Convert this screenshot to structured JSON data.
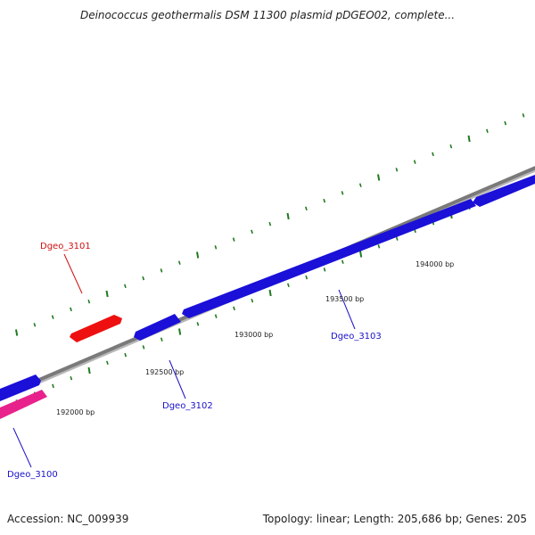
{
  "title": "Deinococcus geothermalis DSM 11300 plasmid pDGEO02, complete...",
  "footer": {
    "accession": "Accession: NC_009939",
    "summary": "Topology: linear; Length: 205,686 bp; Genes: 205"
  },
  "colors": {
    "backbone": "#7a7a7a",
    "gene_forward": "#1a10d8",
    "gene_reverse_red": "#ee1010",
    "gene_reverse_pink": "#e8228c",
    "tick": "#1e7a1e",
    "label_blue": "#1a10c8",
    "label_red": "#d01010"
  },
  "scale_labels": [
    "192000 bp",
    "192500 bp",
    "193000 bp",
    "193500 bp",
    "194000 bp"
  ],
  "genes": [
    {
      "name": "Dgeo_3100",
      "strand": "reverse",
      "color": "pink"
    },
    {
      "name": "Dgeo_3101",
      "strand": "reverse",
      "color": "red"
    },
    {
      "name": "Dgeo_3102",
      "strand": "forward",
      "color": "blue"
    },
    {
      "name": "Dgeo_3103",
      "strand": "forward",
      "color": "blue"
    }
  ]
}
